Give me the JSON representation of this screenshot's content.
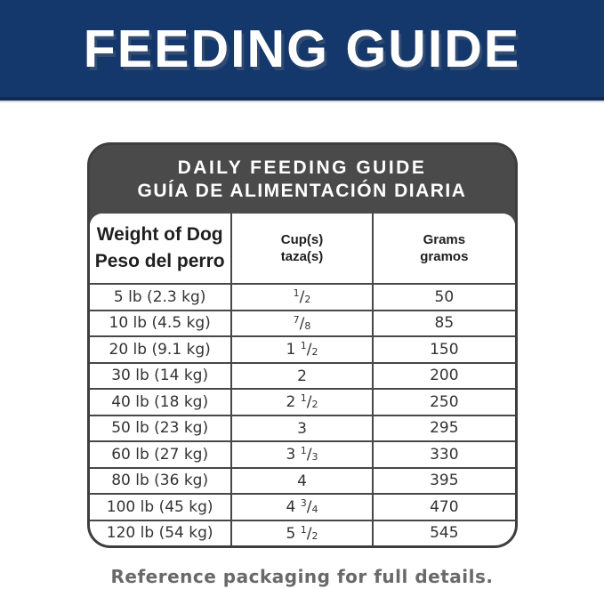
{
  "banner": {
    "title": "FEEDING GUIDE"
  },
  "card": {
    "title_en": "DAILY FEEDING GUIDE",
    "title_es": "GUÍA DE ALIMENTACIÓN DIARIA",
    "columns": {
      "weight_en": "Weight of Dog",
      "weight_es": "Peso del perro",
      "cups_en": "Cup(s)",
      "cups_es": "taza(s)",
      "grams_en": "Grams",
      "grams_es": "gramos"
    },
    "rows": [
      {
        "weight": "5 lb (2.3 kg)",
        "cups": {
          "w": "",
          "n": "1",
          "s": "/",
          "d": "2"
        },
        "grams": "50"
      },
      {
        "weight": "10 lb (4.5 kg)",
        "cups": {
          "w": "",
          "n": "7",
          "s": "/",
          "d": "8"
        },
        "grams": "85"
      },
      {
        "weight": "20 lb (9.1 kg)",
        "cups": {
          "w": "1 ",
          "n": "1",
          "s": "/",
          "d": "2"
        },
        "grams": "150"
      },
      {
        "weight": "30 lb (14 kg)",
        "cups": {
          "w": "2",
          "n": "",
          "s": "",
          "d": ""
        },
        "grams": "200"
      },
      {
        "weight": "40 lb (18 kg)",
        "cups": {
          "w": "2 ",
          "n": "1",
          "s": "/",
          "d": "2"
        },
        "grams": "250"
      },
      {
        "weight": "50 lb (23 kg)",
        "cups": {
          "w": "3",
          "n": "",
          "s": "",
          "d": ""
        },
        "grams": "295"
      },
      {
        "weight": "60 lb (27 kg)",
        "cups": {
          "w": "3 ",
          "n": "1",
          "s": "/",
          "d": "3"
        },
        "grams": "330"
      },
      {
        "weight": "80 lb (36 kg)",
        "cups": {
          "w": "4",
          "n": "",
          "s": "",
          "d": ""
        },
        "grams": "395"
      },
      {
        "weight": "100 lb (45 kg)",
        "cups": {
          "w": "4 ",
          "n": "3",
          "s": "/",
          "d": "4"
        },
        "grams": "470"
      },
      {
        "weight": "120 lb (54 kg)",
        "cups": {
          "w": "5 ",
          "n": "1",
          "s": "/",
          "d": "2"
        },
        "grams": "545"
      }
    ]
  },
  "footer": {
    "note": "Reference packaging for full details."
  },
  "colors": {
    "banner_blue": "#14386b",
    "banner_edge": "#0e2a52",
    "header_gray": "#4a4a4a",
    "grid_line": "#474747",
    "row_text": "#333333",
    "footer_text": "#696969"
  }
}
